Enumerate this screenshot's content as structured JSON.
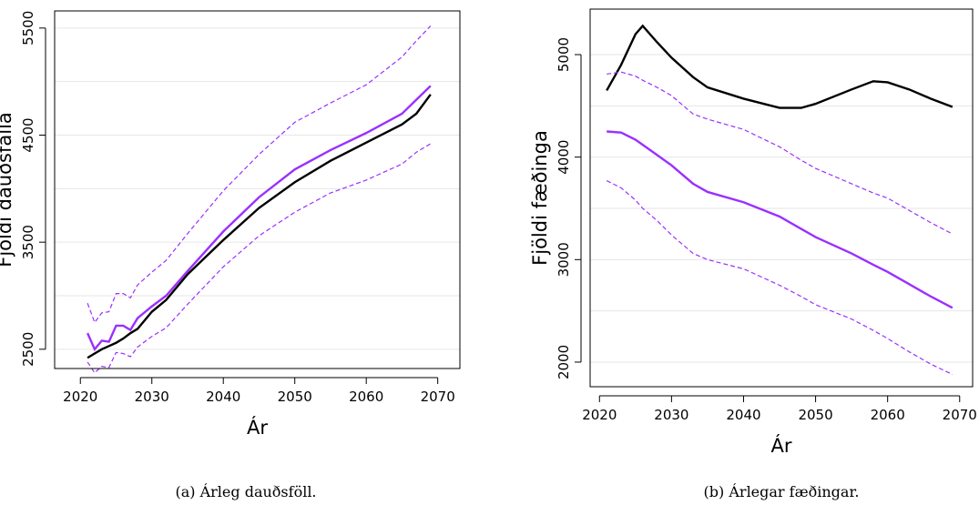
{
  "chart_data": [
    {
      "type": "line",
      "caption": "(a) Árleg dauðsföll.",
      "xlabel": "Ár",
      "ylabel": "Fjöldi dauðsfalla",
      "xlim": [
        2016.4,
        2073.1
      ],
      "xticks": [
        2020,
        2030,
        2040,
        2050,
        2060,
        2070
      ],
      "ylim": [
        2320,
        5660
      ],
      "yticks": [
        2500,
        3500,
        4500,
        5500
      ],
      "grid_lines": [
        2500,
        3000,
        3500,
        4000,
        4500,
        5000,
        5500
      ],
      "x": [
        2021,
        2022,
        2023,
        2024,
        2025,
        2026,
        2027,
        2028,
        2030,
        2032,
        2035,
        2040,
        2045,
        2050,
        2055,
        2060,
        2065,
        2067,
        2069
      ],
      "series": [
        {
          "color": "#000000",
          "dash": false,
          "values": [
            2420,
            2460,
            2500,
            2530,
            2560,
            2600,
            2650,
            2690,
            2850,
            2960,
            3200,
            3520,
            3820,
            4060,
            4260,
            4430,
            4600,
            4700,
            4880
          ]
        },
        {
          "color": "#9b30ff",
          "dash": false,
          "values": [
            2650,
            2500,
            2580,
            2570,
            2720,
            2720,
            2680,
            2790,
            2900,
            3000,
            3230,
            3600,
            3920,
            4180,
            4360,
            4520,
            4700,
            4830,
            4960
          ]
        },
        {
          "color": "#9b30ff",
          "dash": true,
          "values": [
            2930,
            2750,
            2840,
            2850,
            3020,
            3020,
            2980,
            3100,
            3220,
            3330,
            3580,
            3980,
            4320,
            4620,
            4800,
            4970,
            5230,
            5380,
            5520
          ]
        },
        {
          "color": "#9b30ff",
          "dash": true,
          "values": [
            2380,
            2280,
            2340,
            2330,
            2470,
            2460,
            2430,
            2520,
            2620,
            2700,
            2920,
            3270,
            3560,
            3780,
            3960,
            4080,
            4230,
            4340,
            4420
          ]
        }
      ]
    },
    {
      "type": "line",
      "caption": "(b) Árlegar fæðingar.",
      "xlabel": "Ár",
      "ylabel": "Fjöldi fæðinga",
      "xlim": [
        2018.7,
        2071.8
      ],
      "xticks": [
        2020,
        2030,
        2040,
        2050,
        2060,
        2070
      ],
      "ylim": [
        1760,
        5444
      ],
      "yticks": [
        2000,
        3000,
        4000,
        5000
      ],
      "grid_lines": [
        2000,
        2500,
        3000,
        3500,
        4000,
        4500,
        5000
      ],
      "x": [
        2021,
        2023,
        2025,
        2026,
        2028,
        2030,
        2033,
        2035,
        2040,
        2045,
        2048,
        2050,
        2055,
        2058,
        2060,
        2063,
        2066,
        2069
      ],
      "series": [
        {
          "color": "#000000",
          "dash": false,
          "values": [
            4650,
            4900,
            5200,
            5280,
            5120,
            4970,
            4780,
            4680,
            4570,
            4480,
            4480,
            4520,
            4660,
            4740,
            4730,
            4660,
            4570,
            4490
          ]
        },
        {
          "color": "#9b30ff",
          "dash": false,
          "values": [
            4250,
            4240,
            4170,
            4120,
            4020,
            3920,
            3740,
            3660,
            3560,
            3420,
            3300,
            3220,
            3060,
            2950,
            2880,
            2760,
            2640,
            2530
          ]
        },
        {
          "color": "#9b30ff",
          "dash": true,
          "values": [
            4810,
            4830,
            4790,
            4750,
            4680,
            4600,
            4420,
            4370,
            4270,
            4100,
            3970,
            3890,
            3740,
            3650,
            3600,
            3480,
            3360,
            3250
          ]
        },
        {
          "color": "#9b30ff",
          "dash": true,
          "values": [
            3770,
            3700,
            3580,
            3500,
            3380,
            3240,
            3060,
            3000,
            2910,
            2750,
            2640,
            2560,
            2420,
            2310,
            2230,
            2100,
            1980,
            1880
          ]
        }
      ]
    }
  ]
}
